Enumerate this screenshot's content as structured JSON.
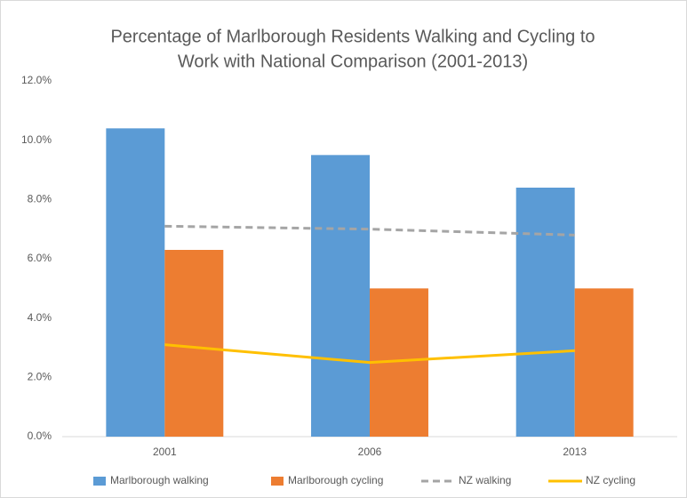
{
  "chart_data": {
    "type": "bar",
    "title": [
      "Percentage of Marlborough Residents Walking and Cycling to",
      "Work with National Comparison (2001-2013)"
    ],
    "categories": [
      "2001",
      "2006",
      "2013"
    ],
    "series": [
      {
        "name": "Marlborough walking",
        "color": "#5b9bd5",
        "values": [
          10.4,
          9.5,
          8.4
        ]
      },
      {
        "name": "Marlborough cycling",
        "color": "#ed7d31",
        "values": [
          6.3,
          5.0,
          5.0
        ]
      },
      {
        "name": "NZ walking",
        "color": "#a5a5a5",
        "type": "line",
        "dashed": true,
        "values": [
          7.1,
          7.0,
          6.8
        ]
      },
      {
        "name": "NZ cycling",
        "color": "#ffc000",
        "type": "line",
        "dashed": false,
        "values": [
          3.1,
          2.5,
          2.9
        ]
      }
    ],
    "ylim": [
      0,
      12
    ],
    "yticks": [
      {
        "value": 0,
        "label": "0.0%"
      },
      {
        "value": 2,
        "label": "2.0%"
      },
      {
        "value": 4,
        "label": "4.0%"
      },
      {
        "value": 6,
        "label": "6.0%"
      },
      {
        "value": 8,
        "label": "8.0%"
      },
      {
        "value": 10,
        "label": "10.0%"
      },
      {
        "value": 12,
        "label": "12.0%"
      }
    ],
    "grid": false,
    "legend": "bottom"
  }
}
